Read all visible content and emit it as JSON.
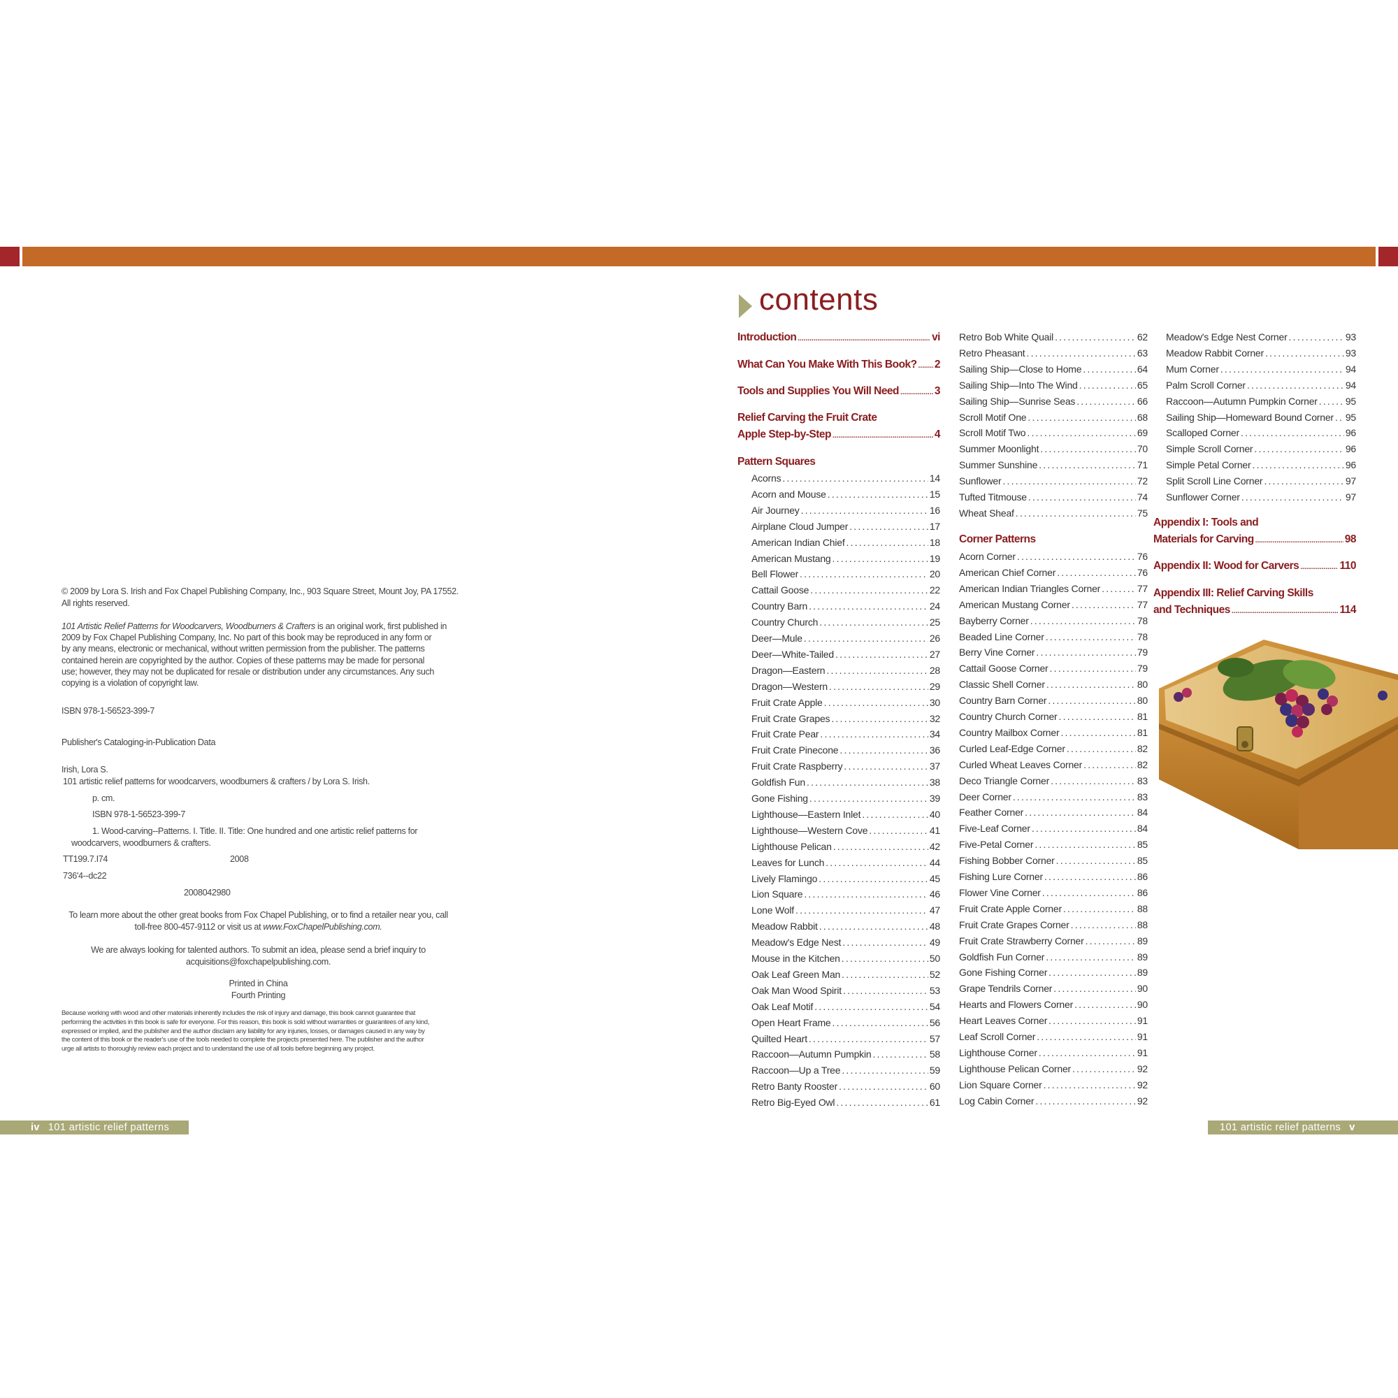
{
  "colors": {
    "header_orange": "#c46a27",
    "header_red": "#a3262a",
    "accent_olive": "#a9a877",
    "heading_red": "#8a1e20"
  },
  "left_page": {
    "copyright_lines": [
      "© 2009 by Lora S. Irish and Fox Chapel Publishing Company, Inc., 903 Square Street, Mount Joy, PA 17552.",
      "All rights reserved."
    ],
    "work_title": "101 Artistic Relief Patterns for Woodcarvers, Woodburners & Crafters",
    "work_first_line_rest": " is an original work, first published in",
    "work_lines": [
      "2009 by Fox Chapel Publishing Company, Inc. No part of this book may be reproduced in any form or",
      "by any means, electronic or mechanical, without written permission from the publisher. The patterns",
      "contained herein are copyrighted by the author. Copies of these patterns may be made for personal",
      "use; however, they may not be duplicated for resale or distribution under any circumstances. Any such",
      "copying is a violation of copyright law."
    ],
    "isbn": "ISBN 978-1-56523-399-7",
    "cip_title": "Publisher's Cataloging-in-Publication Data",
    "cip_author": "Irish, Lora S.",
    "cip_title_line": "101 artistic relief patterns for woodcarvers, woodburners & crafters / by Lora S. Irish.",
    "cip_pcm": "p. cm.",
    "cip_isbn": "ISBN 978-1-56523-399-7",
    "cip_subjects": [
      "1.  Wood-carving--Patterns.  I. Title. II. Title: One hundred and one artistic relief patterns for",
      "woodcarvers, woodburners & crafters."
    ],
    "cip_lc": "TT199.7.I74",
    "cip_year": "2008",
    "cip_dewey": "736'4--dc22",
    "cip_lccn": "2008042980",
    "learn_line1": "To learn more about the other great books from Fox Chapel Publishing, or to find a retailer near you, call",
    "learn_line2": "toll-free 800-457-9112 or visit us at ",
    "learn_url": "www.FoxChapelPublishing.com.",
    "authors_lines": [
      "We are always looking for talented authors. To submit an idea, please send a brief inquiry to",
      "acquisitions@foxchapelpublishing.com."
    ],
    "printed": "Printed in China",
    "printing": "Fourth Printing",
    "disclaimer_lines": [
      "Because working with wood and other materials inherently includes the risk of injury and damage, this book cannot guarantee that",
      "performing the activities in this book is safe for everyone. For this reason, this book is sold without warranties or guarantees of any kind,",
      "expressed or implied, and the publisher and the author disclaim any liability for any injuries, losses, or damages caused in any way by",
      "the content of this book or the reader's use of the tools needed to complete the projects presented here. The publisher and the author",
      "urge all artists to thoroughly review each project and to understand the use of all tools before beginning any project."
    ],
    "footer_page": "iv",
    "footer_title": "101 artistic relief patterns"
  },
  "right_page": {
    "title": "contents",
    "footer_page": "v",
    "footer_title": "101 artistic relief patterns",
    "photo_icon": "wooden-box-with-grapes-photo",
    "col1_major": [
      {
        "label": "Introduction",
        "page": "vi"
      },
      {
        "label": "What Can You Make With This Book?",
        "page": "2"
      },
      {
        "label": "Tools and Supplies You Will Need",
        "page": "3"
      },
      {
        "label_line1": "Relief Carving the Fruit Crate",
        "label": "Apple Step-by-Step",
        "page": "4"
      }
    ],
    "pattern_squares_heading": "Pattern Squares",
    "pattern_squares": [
      {
        "label": "Acorns",
        "page": "14"
      },
      {
        "label": "Acorn and Mouse",
        "page": "15"
      },
      {
        "label": "Air Journey",
        "page": "16"
      },
      {
        "label": "Airplane Cloud Jumper",
        "page": "17"
      },
      {
        "label": "American Indian Chief",
        "page": "18"
      },
      {
        "label": "American Mustang",
        "page": "19"
      },
      {
        "label": "Bell Flower",
        "page": "20"
      },
      {
        "label": "Cattail Goose",
        "page": "22"
      },
      {
        "label": "Country Barn",
        "page": "24"
      },
      {
        "label": "Country Church",
        "page": "25"
      },
      {
        "label": "Deer—Mule",
        "page": "26"
      },
      {
        "label": "Deer—White-Tailed",
        "page": "27"
      },
      {
        "label": "Dragon—Eastern",
        "page": "28"
      },
      {
        "label": "Dragon—Western",
        "page": "29"
      },
      {
        "label": "Fruit Crate Apple",
        "page": "30"
      },
      {
        "label": "Fruit Crate Grapes",
        "page": "32"
      },
      {
        "label": "Fruit Crate Pear",
        "page": "34"
      },
      {
        "label": "Fruit Crate Pinecone",
        "page": "36"
      },
      {
        "label": "Fruit Crate Raspberry",
        "page": "37"
      },
      {
        "label": "Goldfish Fun",
        "page": "38"
      },
      {
        "label": "Gone Fishing",
        "page": "39"
      },
      {
        "label": "Lighthouse—Eastern Inlet",
        "page": "40"
      },
      {
        "label": "Lighthouse—Western Cove",
        "page": "41"
      },
      {
        "label": "Lighthouse Pelican",
        "page": "42"
      },
      {
        "label": "Leaves for Lunch",
        "page": "44"
      },
      {
        "label": "Lively Flamingo",
        "page": "45"
      },
      {
        "label": "Lion Square",
        "page": "46"
      },
      {
        "label": "Lone Wolf",
        "page": "47"
      },
      {
        "label": "Meadow Rabbit",
        "page": "48"
      },
      {
        "label": "Meadow's Edge Nest",
        "page": "49"
      },
      {
        "label": "Mouse in the Kitchen",
        "page": "50"
      },
      {
        "label": "Oak Leaf Green Man",
        "page": "52"
      },
      {
        "label": "Oak Man Wood Spirit",
        "page": "53"
      },
      {
        "label": "Oak Leaf Motif",
        "page": "54"
      },
      {
        "label": "Open Heart Frame",
        "page": "56"
      },
      {
        "label": "Quilted Heart",
        "page": "57"
      },
      {
        "label": "Raccoon—Autumn Pumpkin",
        "page": "58"
      },
      {
        "label": "Raccoon—Up a Tree",
        "page": "59"
      },
      {
        "label": "Retro Banty Rooster",
        "page": "60"
      },
      {
        "label": "Retro Big-Eyed Owl",
        "page": "61"
      },
      {
        "label": "Retro Bob White Quail",
        "page": "62"
      },
      {
        "label": "Retro Pheasant",
        "page": "63"
      },
      {
        "label": "Sailing Ship—Close to Home",
        "page": "64"
      },
      {
        "label": "Sailing Ship—Into The Wind",
        "page": "65"
      },
      {
        "label": "Sailing Ship—Sunrise Seas",
        "page": "66"
      },
      {
        "label": "Scroll Motif One",
        "page": "68"
      },
      {
        "label": "Scroll Motif Two",
        "page": "69"
      },
      {
        "label": "Summer Moonlight",
        "page": "70"
      },
      {
        "label": "Summer Sunshine",
        "page": "71"
      },
      {
        "label": "Sunflower",
        "page": "72"
      },
      {
        "label": "Tufted Titmouse",
        "page": "74"
      },
      {
        "label": "Wheat Sheaf",
        "page": "75"
      }
    ],
    "corner_patterns_heading": "Corner Patterns",
    "corner_patterns": [
      {
        "label": "Acorn Corner",
        "page": "76"
      },
      {
        "label": "American Chief Corner",
        "page": "76"
      },
      {
        "label": "American Indian Triangles Corner",
        "page": "77"
      },
      {
        "label": "American Mustang Corner",
        "page": "77"
      },
      {
        "label": "Bayberry Corner",
        "page": "78"
      },
      {
        "label": "Beaded Line Corner",
        "page": "78"
      },
      {
        "label": "Berry Vine Corner",
        "page": "79"
      },
      {
        "label": "Cattail Goose Corner",
        "page": "79"
      },
      {
        "label": "Classic Shell Corner",
        "page": "80"
      },
      {
        "label": "Country Barn Corner",
        "page": "80"
      },
      {
        "label": "Country Church Corner",
        "page": "81"
      },
      {
        "label": "Country Mailbox Corner",
        "page": "81"
      },
      {
        "label": "Curled Leaf-Edge Corner",
        "page": "82"
      },
      {
        "label": "Curled Wheat Leaves Corner",
        "page": "82"
      },
      {
        "label": "Deco Triangle Corner",
        "page": "83"
      },
      {
        "label": "Deer Corner",
        "page": "83"
      },
      {
        "label": "Feather Corner",
        "page": "84"
      },
      {
        "label": "Five-Leaf Corner",
        "page": "84"
      },
      {
        "label": "Five-Petal Corner",
        "page": "85"
      },
      {
        "label": "Fishing Bobber Corner",
        "page": "85"
      },
      {
        "label": "Fishing Lure Corner",
        "page": "86"
      },
      {
        "label": "Flower Vine Corner",
        "page": "86"
      },
      {
        "label": "Fruit Crate Apple Corner",
        "page": "88"
      },
      {
        "label": "Fruit Crate Grapes Corner",
        "page": "88"
      },
      {
        "label": "Fruit Crate Strawberry Corner",
        "page": "89"
      },
      {
        "label": "Goldfish Fun Corner",
        "page": "89"
      },
      {
        "label": "Gone Fishing Corner",
        "page": "89"
      },
      {
        "label": "Grape Tendrils Corner",
        "page": "90"
      },
      {
        "label": "Hearts and Flowers Corner",
        "page": "90"
      },
      {
        "label": "Heart Leaves Corner",
        "page": "91"
      },
      {
        "label": "Leaf Scroll Corner",
        "page": "91"
      },
      {
        "label": "Lighthouse Corner",
        "page": "91"
      },
      {
        "label": "Lighthouse Pelican Corner",
        "page": "92"
      },
      {
        "label": "Lion Square Corner",
        "page": "92"
      },
      {
        "label": "Log Cabin Corner",
        "page": "92"
      },
      {
        "label": "Meadow's Edge Nest Corner",
        "page": "93"
      },
      {
        "label": "Meadow Rabbit Corner",
        "page": "93"
      },
      {
        "label": "Mum Corner",
        "page": "94"
      },
      {
        "label": "Palm Scroll Corner",
        "page": "94"
      },
      {
        "label": "Raccoon—Autumn Pumpkin Corner",
        "page": "95"
      },
      {
        "label": "Sailing Ship—Homeward Bound Corner",
        "page": "95"
      },
      {
        "label": "Scalloped Corner",
        "page": "96"
      },
      {
        "label": "Simple Scroll Corner",
        "page": "96"
      },
      {
        "label": "Simple Petal Corner",
        "page": "96"
      },
      {
        "label": "Split Scroll Line Corner",
        "page": "97"
      },
      {
        "label": "Sunflower Corner",
        "page": "97"
      }
    ],
    "appendices": [
      {
        "label_line1": "Appendix I: Tools and",
        "label": "Materials for Carving",
        "page": "98"
      },
      {
        "label": "Appendix II: Wood for Carvers",
        "page": "110"
      },
      {
        "label_line1": "Appendix III: Relief Carving Skills",
        "label": "and Techniques",
        "page": "114"
      }
    ]
  }
}
